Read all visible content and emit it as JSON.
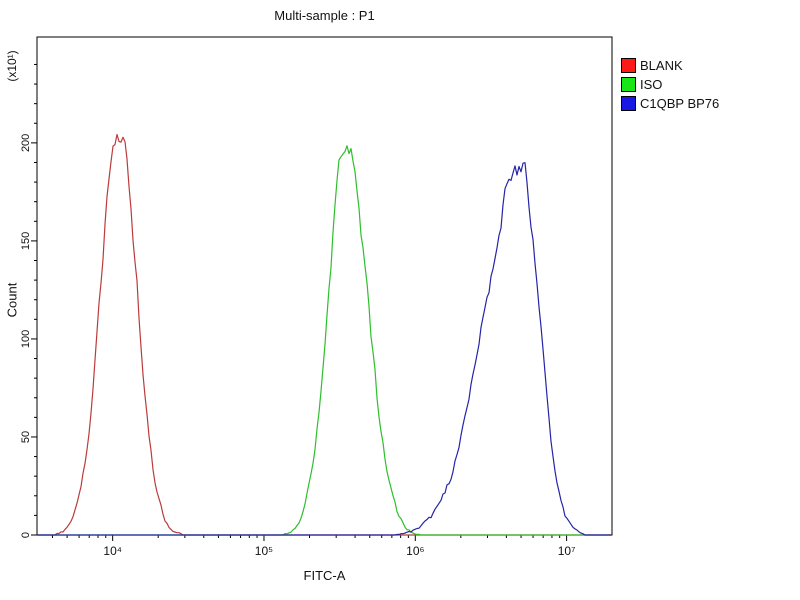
{
  "title": "Multi-sample : P1",
  "axes": {
    "x": {
      "label": "FITC-A",
      "scale": "log10",
      "min_exp": 3.5,
      "max_exp": 7.3,
      "major_ticks": [
        {
          "exp": 4,
          "label": "10⁴"
        },
        {
          "exp": 5,
          "label": "10⁵"
        },
        {
          "exp": 6,
          "label": "10⁶"
        },
        {
          "exp": 7,
          "label": "10⁷"
        }
      ]
    },
    "y": {
      "label": "Count",
      "unit_label": "(x10¹)",
      "min": 0,
      "max": 254,
      "major_ticks": [
        0,
        50,
        100,
        150,
        200
      ],
      "minor_step": 10
    }
  },
  "legend": {
    "items": [
      {
        "label": "BLANK",
        "color": "#ff1a1a"
      },
      {
        "label": "ISO",
        "color": "#17e617"
      },
      {
        "label": "C1QBP BP76",
        "color": "#1717e6"
      }
    ]
  },
  "chart_data": {
    "type": "line",
    "title": "Multi-sample : P1",
    "xlabel": "FITC-A",
    "ylabel": "Count",
    "x_scale": "log10",
    "xlim": [
      3162,
      20000000
    ],
    "ylim": [
      0,
      254
    ],
    "grid": false,
    "legend_position": "top-right-outside",
    "series": [
      {
        "name": "BLANK",
        "color": "#bb3b3b",
        "peak_x": 11000,
        "peak_count": 207,
        "log_sigma_left": 0.12,
        "log_sigma_right": 0.12
      },
      {
        "name": "ISO",
        "color": "#2dbf2d",
        "peak_x": 350000,
        "peak_count": 202,
        "log_sigma_left": 0.12,
        "log_sigma_right": 0.14
      },
      {
        "name": "C1QBP BP76",
        "color": "#2424a8",
        "peak_x": 5000000,
        "peak_count": 189,
        "log_sigma_left": 0.24,
        "log_sigma_right": 0.12
      }
    ]
  }
}
